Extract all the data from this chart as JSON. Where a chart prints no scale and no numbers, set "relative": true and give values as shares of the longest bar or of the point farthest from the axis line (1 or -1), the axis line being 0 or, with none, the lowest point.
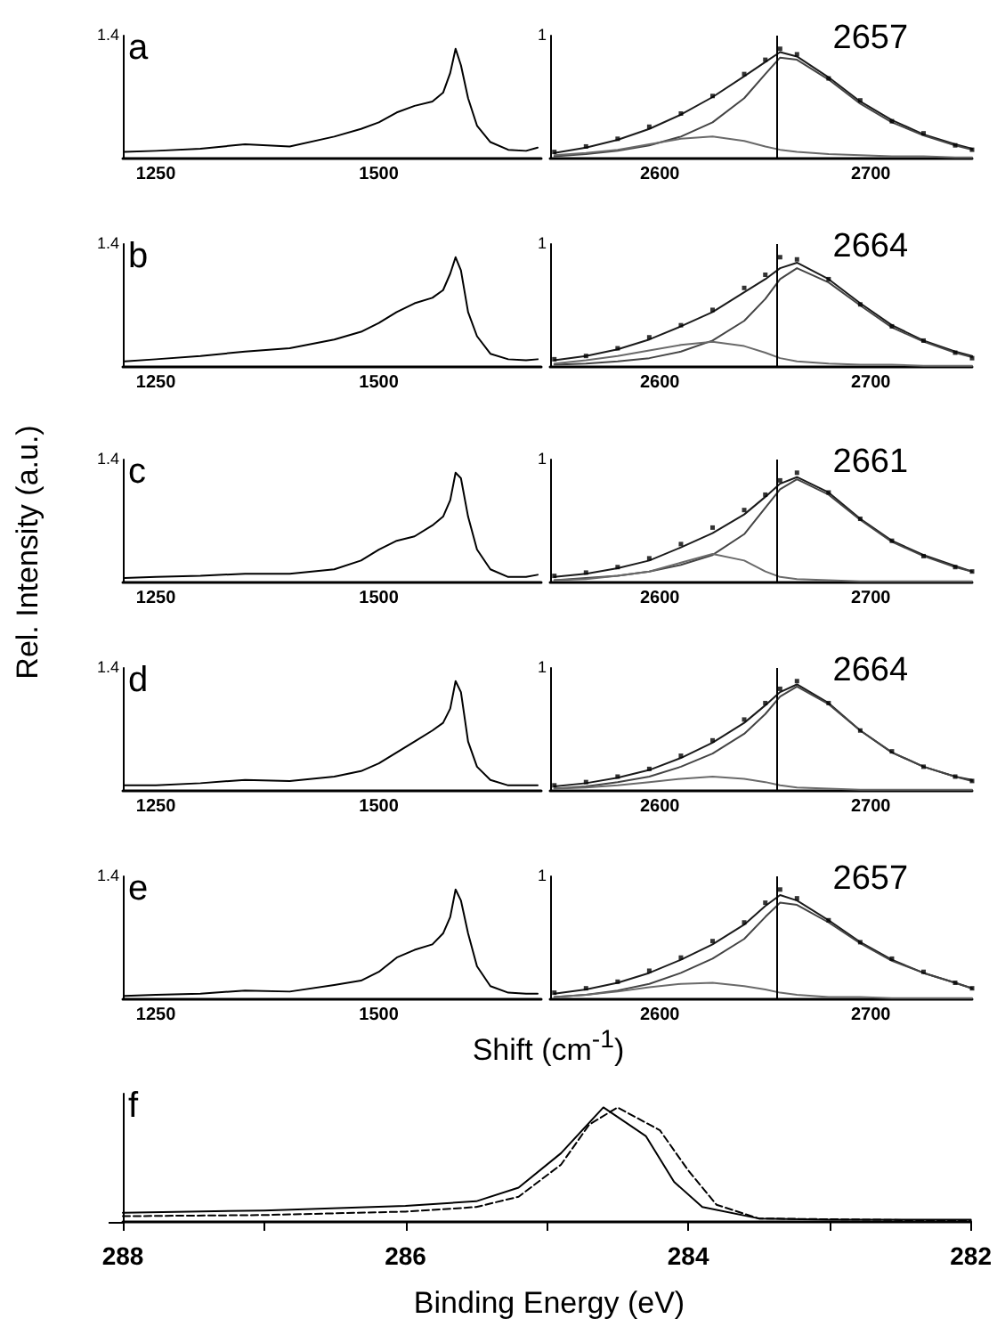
{
  "chart_data": [
    {
      "type": "line",
      "xlim": [
        1213,
        1682
      ],
      "xticks": [
        1250,
        1500
      ],
      "relative": true,
      "marker": "none",
      "annotations": [
        "1.4",
        "a"
      ],
      "x": [
        1215,
        1250,
        1300,
        1350,
        1400,
        1450,
        1480,
        1500,
        1520,
        1540,
        1560,
        1572,
        1580,
        1586,
        1592,
        1600,
        1610,
        1625,
        1645,
        1665,
        1678
      ],
      "series": [
        {
          "color": "#000000",
          "values": [
            0.06,
            0.07,
            0.09,
            0.13,
            0.11,
            0.2,
            0.27,
            0.33,
            0.42,
            0.48,
            0.52,
            0.6,
            0.78,
            1.0,
            0.85,
            0.55,
            0.3,
            0.15,
            0.08,
            0.07,
            0.1
          ]
        }
      ]
    },
    {
      "type": "line",
      "xlim": [
        2548,
        2748
      ],
      "xticks": [
        2600,
        2700
      ],
      "relative": true,
      "marker": "none",
      "annotations": [
        "1",
        "2657"
      ],
      "ref_lines": [
        {
          "axis": "x",
          "value": 2655,
          "color": "#000000"
        }
      ],
      "x": [
        2550,
        2565,
        2580,
        2595,
        2610,
        2625,
        2640,
        2650,
        2657,
        2665,
        2680,
        2695,
        2710,
        2725,
        2740,
        2748
      ],
      "series": [
        {
          "type": "scatter",
          "marker": "square",
          "color": "#000000",
          "values": [
            0.06,
            0.11,
            0.18,
            0.29,
            0.41,
            0.57,
            0.77,
            0.9,
            1.0,
            0.95,
            0.73,
            0.53,
            0.34,
            0.23,
            0.12,
            0.08
          ]
        },
        {
          "color": "#1a1a1a",
          "values": [
            0.05,
            0.1,
            0.17,
            0.27,
            0.4,
            0.56,
            0.75,
            0.88,
            0.97,
            0.93,
            0.74,
            0.52,
            0.35,
            0.22,
            0.13,
            0.09
          ]
        },
        {
          "color": "#444444",
          "values": [
            0.02,
            0.04,
            0.07,
            0.12,
            0.2,
            0.33,
            0.55,
            0.77,
            0.92,
            0.9,
            0.72,
            0.5,
            0.33,
            0.21,
            0.12,
            0.08
          ]
        },
        {
          "color": "#6a6a6a",
          "values": [
            0.03,
            0.05,
            0.08,
            0.13,
            0.18,
            0.2,
            0.16,
            0.11,
            0.08,
            0.06,
            0.04,
            0.03,
            0.02,
            0.02,
            0.01,
            0.01
          ]
        }
      ]
    },
    {
      "type": "line",
      "xlim": [
        1213,
        1682
      ],
      "xticks": [
        1250,
        1500
      ],
      "relative": true,
      "marker": "none",
      "annotations": [
        "1.4",
        "b"
      ],
      "x": [
        1215,
        1250,
        1300,
        1350,
        1400,
        1450,
        1480,
        1500,
        1520,
        1540,
        1560,
        1572,
        1580,
        1586,
        1592,
        1600,
        1610,
        1625,
        1645,
        1665,
        1678
      ],
      "series": [
        {
          "color": "#000000",
          "values": [
            0.05,
            0.07,
            0.1,
            0.14,
            0.17,
            0.25,
            0.32,
            0.4,
            0.5,
            0.58,
            0.63,
            0.7,
            0.85,
            1.0,
            0.88,
            0.5,
            0.28,
            0.12,
            0.07,
            0.06,
            0.07
          ]
        }
      ]
    },
    {
      "type": "line",
      "xlim": [
        2548,
        2748
      ],
      "xticks": [
        2600,
        2700
      ],
      "relative": true,
      "marker": "none",
      "annotations": [
        "1",
        "2664"
      ],
      "ref_lines": [
        {
          "axis": "x",
          "value": 2655,
          "color": "#000000"
        }
      ],
      "x": [
        2550,
        2565,
        2580,
        2595,
        2610,
        2625,
        2640,
        2650,
        2657,
        2665,
        2680,
        2695,
        2710,
        2725,
        2740,
        2748
      ],
      "series": [
        {
          "type": "scatter",
          "marker": "square",
          "color": "#000000",
          "values": [
            0.07,
            0.1,
            0.17,
            0.27,
            0.38,
            0.52,
            0.72,
            0.84,
            1.0,
            0.98,
            0.8,
            0.57,
            0.37,
            0.24,
            0.13,
            0.08
          ]
        },
        {
          "color": "#1a1a1a",
          "values": [
            0.06,
            0.1,
            0.16,
            0.25,
            0.37,
            0.5,
            0.68,
            0.8,
            0.9,
            0.95,
            0.8,
            0.58,
            0.38,
            0.24,
            0.14,
            0.1
          ]
        },
        {
          "color": "#444444",
          "values": [
            0.02,
            0.03,
            0.05,
            0.08,
            0.14,
            0.24,
            0.42,
            0.62,
            0.8,
            0.9,
            0.77,
            0.56,
            0.36,
            0.23,
            0.13,
            0.09
          ]
        },
        {
          "color": "#6a6a6a",
          "values": [
            0.03,
            0.06,
            0.1,
            0.15,
            0.2,
            0.23,
            0.19,
            0.13,
            0.08,
            0.05,
            0.03,
            0.02,
            0.02,
            0.01,
            0.01,
            0.01
          ]
        }
      ]
    },
    {
      "type": "line",
      "xlim": [
        1213,
        1682
      ],
      "xticks": [
        1250,
        1500
      ],
      "relative": true,
      "marker": "none",
      "ylabel": "Rel. Intensity (a.u.)",
      "annotations": [
        "1.4",
        "c"
      ],
      "x": [
        1215,
        1250,
        1300,
        1350,
        1400,
        1450,
        1480,
        1500,
        1520,
        1540,
        1560,
        1572,
        1580,
        1586,
        1592,
        1600,
        1610,
        1625,
        1645,
        1665,
        1678
      ],
      "series": [
        {
          "color": "#000000",
          "values": [
            0.04,
            0.05,
            0.06,
            0.08,
            0.08,
            0.12,
            0.2,
            0.3,
            0.38,
            0.42,
            0.52,
            0.6,
            0.75,
            1.0,
            0.95,
            0.6,
            0.3,
            0.12,
            0.05,
            0.05,
            0.07
          ]
        }
      ]
    },
    {
      "type": "line",
      "xlim": [
        2548,
        2748
      ],
      "xticks": [
        2600,
        2700
      ],
      "relative": true,
      "marker": "none",
      "annotations": [
        "1",
        "2661"
      ],
      "ref_lines": [
        {
          "axis": "x",
          "value": 2655,
          "color": "#000000"
        }
      ],
      "x": [
        2550,
        2565,
        2580,
        2595,
        2610,
        2625,
        2640,
        2650,
        2657,
        2665,
        2680,
        2695,
        2710,
        2725,
        2740,
        2748
      ],
      "series": [
        {
          "type": "scatter",
          "marker": "square",
          "color": "#000000",
          "values": [
            0.06,
            0.09,
            0.14,
            0.22,
            0.35,
            0.5,
            0.66,
            0.8,
            0.93,
            1.0,
            0.82,
            0.58,
            0.38,
            0.24,
            0.14,
            0.1
          ]
        },
        {
          "color": "#1a1a1a",
          "values": [
            0.05,
            0.08,
            0.13,
            0.2,
            0.32,
            0.45,
            0.62,
            0.78,
            0.9,
            0.96,
            0.82,
            0.58,
            0.38,
            0.25,
            0.15,
            0.1
          ]
        },
        {
          "color": "#444444",
          "values": [
            0.02,
            0.04,
            0.06,
            0.1,
            0.16,
            0.25,
            0.44,
            0.68,
            0.85,
            0.94,
            0.8,
            0.57,
            0.37,
            0.24,
            0.14,
            0.1
          ]
        },
        {
          "color": "#6a6a6a",
          "values": [
            0.02,
            0.03,
            0.06,
            0.1,
            0.18,
            0.26,
            0.2,
            0.1,
            0.05,
            0.03,
            0.02,
            0.01,
            0.01,
            0.01,
            0.01,
            0.01
          ]
        }
      ]
    },
    {
      "type": "line",
      "xlim": [
        1213,
        1682
      ],
      "xticks": [
        1250,
        1500
      ],
      "relative": true,
      "marker": "none",
      "annotations": [
        "1.4",
        "d"
      ],
      "x": [
        1215,
        1250,
        1300,
        1350,
        1400,
        1450,
        1480,
        1500,
        1520,
        1540,
        1560,
        1572,
        1580,
        1586,
        1592,
        1600,
        1610,
        1625,
        1645,
        1665,
        1678
      ],
      "series": [
        {
          "color": "#000000",
          "values": [
            0.05,
            0.05,
            0.07,
            0.1,
            0.09,
            0.13,
            0.18,
            0.25,
            0.35,
            0.45,
            0.55,
            0.62,
            0.75,
            1.0,
            0.9,
            0.45,
            0.22,
            0.1,
            0.05,
            0.05,
            0.05
          ]
        }
      ]
    },
    {
      "type": "line",
      "xlim": [
        2548,
        2748
      ],
      "xticks": [
        2600,
        2700
      ],
      "relative": true,
      "marker": "none",
      "annotations": [
        "1",
        "2664"
      ],
      "ref_lines": [
        {
          "axis": "x",
          "value": 2655,
          "color": "#000000"
        }
      ],
      "x": [
        2550,
        2565,
        2580,
        2595,
        2610,
        2625,
        2640,
        2650,
        2657,
        2665,
        2680,
        2695,
        2710,
        2725,
        2740,
        2748
      ],
      "series": [
        {
          "type": "scatter",
          "marker": "square",
          "color": "#000000",
          "values": [
            0.05,
            0.08,
            0.13,
            0.2,
            0.32,
            0.46,
            0.65,
            0.8,
            0.93,
            1.0,
            0.8,
            0.55,
            0.36,
            0.22,
            0.13,
            0.09
          ]
        },
        {
          "color": "#1a1a1a",
          "values": [
            0.04,
            0.07,
            0.12,
            0.19,
            0.3,
            0.44,
            0.62,
            0.78,
            0.9,
            0.97,
            0.8,
            0.55,
            0.35,
            0.22,
            0.13,
            0.1
          ]
        },
        {
          "color": "#444444",
          "values": [
            0.02,
            0.04,
            0.08,
            0.13,
            0.22,
            0.34,
            0.52,
            0.7,
            0.86,
            0.95,
            0.79,
            0.55,
            0.35,
            0.22,
            0.13,
            0.09
          ]
        },
        {
          "color": "#6a6a6a",
          "values": [
            0.02,
            0.03,
            0.05,
            0.08,
            0.11,
            0.13,
            0.11,
            0.08,
            0.05,
            0.03,
            0.02,
            0.01,
            0.01,
            0.01,
            0.01,
            0.01
          ]
        }
      ]
    },
    {
      "type": "line",
      "xlim": [
        1213,
        1682
      ],
      "xticks": [
        1250,
        1500
      ],
      "relative": true,
      "marker": "none",
      "xlabel": "Shift (cm$^{-1}$)",
      "annotations": [
        "1.4",
        "e"
      ],
      "x": [
        1215,
        1250,
        1300,
        1350,
        1400,
        1450,
        1480,
        1500,
        1520,
        1540,
        1560,
        1572,
        1580,
        1586,
        1592,
        1600,
        1610,
        1625,
        1645,
        1665,
        1678
      ],
      "series": [
        {
          "color": "#000000",
          "values": [
            0.03,
            0.04,
            0.05,
            0.08,
            0.07,
            0.13,
            0.17,
            0.25,
            0.38,
            0.45,
            0.5,
            0.6,
            0.75,
            1.0,
            0.9,
            0.6,
            0.3,
            0.12,
            0.06,
            0.05,
            0.05
          ]
        }
      ]
    },
    {
      "type": "line",
      "xlim": [
        2548,
        2748
      ],
      "xticks": [
        2600,
        2700
      ],
      "relative": true,
      "marker": "none",
      "annotations": [
        "1",
        "2657"
      ],
      "ref_lines": [
        {
          "axis": "x",
          "value": 2655,
          "color": "#000000"
        }
      ],
      "x": [
        2550,
        2565,
        2580,
        2595,
        2610,
        2625,
        2640,
        2650,
        2657,
        2665,
        2680,
        2695,
        2710,
        2725,
        2740,
        2748
      ],
      "series": [
        {
          "type": "scatter",
          "marker": "square",
          "color": "#000000",
          "values": [
            0.06,
            0.1,
            0.16,
            0.26,
            0.38,
            0.53,
            0.7,
            0.88,
            1.0,
            0.92,
            0.72,
            0.52,
            0.37,
            0.25,
            0.15,
            0.1
          ]
        },
        {
          "color": "#1a1a1a",
          "values": [
            0.05,
            0.09,
            0.15,
            0.24,
            0.36,
            0.5,
            0.68,
            0.85,
            0.95,
            0.9,
            0.72,
            0.52,
            0.36,
            0.24,
            0.15,
            0.1
          ]
        },
        {
          "color": "#444444",
          "values": [
            0.02,
            0.04,
            0.08,
            0.14,
            0.24,
            0.37,
            0.55,
            0.75,
            0.88,
            0.86,
            0.7,
            0.51,
            0.35,
            0.24,
            0.15,
            0.1
          ]
        },
        {
          "color": "#6a6a6a",
          "values": [
            0.02,
            0.04,
            0.07,
            0.11,
            0.14,
            0.15,
            0.12,
            0.09,
            0.06,
            0.04,
            0.02,
            0.02,
            0.01,
            0.01,
            0.01,
            0.01
          ]
        }
      ]
    },
    {
      "type": "line",
      "xlim": [
        288,
        282
      ],
      "xticks": [
        288,
        {
          "value": 287,
          "label": null
        },
        286,
        {
          "value": 285,
          "label": null
        },
        284,
        {
          "value": 283,
          "label": null
        },
        282
      ],
      "relative": true,
      "marker": "none",
      "xlabel": "Binding Energy (eV)",
      "annotations": [
        "f"
      ],
      "series": [
        {
          "color": "#000000",
          "line_style": "solid",
          "x": [
            288,
            287,
            286,
            285.5,
            285.2,
            284.9,
            284.6,
            284.3,
            284.1,
            283.9,
            283.5,
            283,
            282
          ],
          "values": [
            0.08,
            0.1,
            0.14,
            0.18,
            0.3,
            0.6,
            1.0,
            0.75,
            0.35,
            0.13,
            0.03,
            0.02,
            0.02
          ]
        },
        {
          "color": "#000000",
          "line_style": "dashed",
          "x": [
            288,
            287,
            286,
            285.5,
            285.2,
            284.9,
            284.7,
            284.5,
            284.2,
            284,
            283.8,
            283.5,
            282
          ],
          "values": [
            0.05,
            0.06,
            0.09,
            0.13,
            0.22,
            0.5,
            0.85,
            1.0,
            0.8,
            0.45,
            0.15,
            0.03,
            0.01
          ]
        }
      ]
    }
  ]
}
